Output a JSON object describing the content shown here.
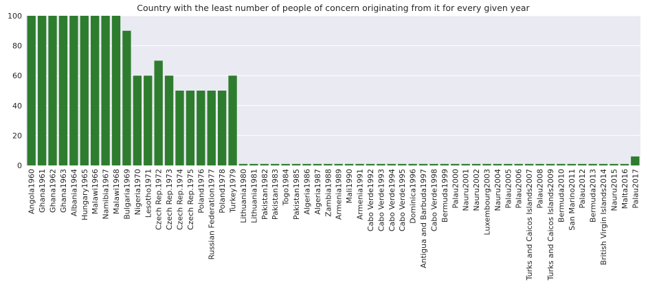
{
  "chart_data": {
    "type": "bar",
    "title": "Country with the least number of people of concern originating from it for every given year",
    "xlabel": "",
    "ylabel": "",
    "ylim": [
      0,
      100
    ],
    "yticks": [
      0,
      20,
      40,
      60,
      80,
      100
    ],
    "grid": true,
    "legend": "none",
    "bar_color": "#2e7d2e",
    "plot_background": "#eaeaf2",
    "categories": [
      "Angola1960",
      "Ghana1961",
      "Ghana1962",
      "Ghana1963",
      "Albania1964",
      "Hungary1965",
      "Malawi1966",
      "Namibia1967",
      "Malawi1968",
      "Bulgaria1969",
      "Nigeria1970",
      "Lesotho1971",
      "Czech Rep.1972",
      "Czech Rep.1973",
      "Czech Rep.1974",
      "Czech Rep.1975",
      "Poland1976",
      "Russian Federation1977",
      "Poland1978",
      "Turkey1979",
      "Lithuania1980",
      "Lithuania1981",
      "Pakistan1982",
      "Pakistan1983",
      "Togo1984",
      "Pakistan1985",
      "Algeria1986",
      "Algeria1987",
      "Zambia1988",
      "Armenia1989",
      "Mali1990",
      "Armenia1991",
      "Cabo Verde1992",
      "Cabo Verde1993",
      "Cabo Verde1994",
      "Cabo Verde1995",
      "Dominica1996",
      "Antigua and Barbuda1997",
      "Cabo Verde1998",
      "Bermuda1999",
      "Palau2000",
      "Nauru2001",
      "Nauru2002",
      "Luxembourg2003",
      "Nauru2004",
      "Palau2005",
      "Palau2006",
      "Turks and Caicos Islands2007",
      "Palau2008",
      "Turks and Caicos Islands2009",
      "Bermuda2010",
      "San Marino2011",
      "Palau2012",
      "Bermuda2013",
      "British Virgin Islands2014",
      "Nauru2015",
      "Malta2016",
      "Palau2017"
    ],
    "values": [
      100,
      100,
      100,
      100,
      100,
      100,
      100,
      100,
      100,
      90,
      60,
      60,
      70,
      60,
      50,
      50,
      50,
      50,
      50,
      60,
      1,
      1,
      1,
      1,
      1,
      1,
      1,
      1,
      1,
      1,
      1,
      1,
      1,
      1,
      1,
      1,
      1,
      1,
      1,
      1,
      1,
      1,
      1,
      1,
      1,
      1,
      1,
      1,
      1,
      1,
      1,
      1,
      1,
      1,
      1,
      1,
      1,
      6
    ]
  }
}
